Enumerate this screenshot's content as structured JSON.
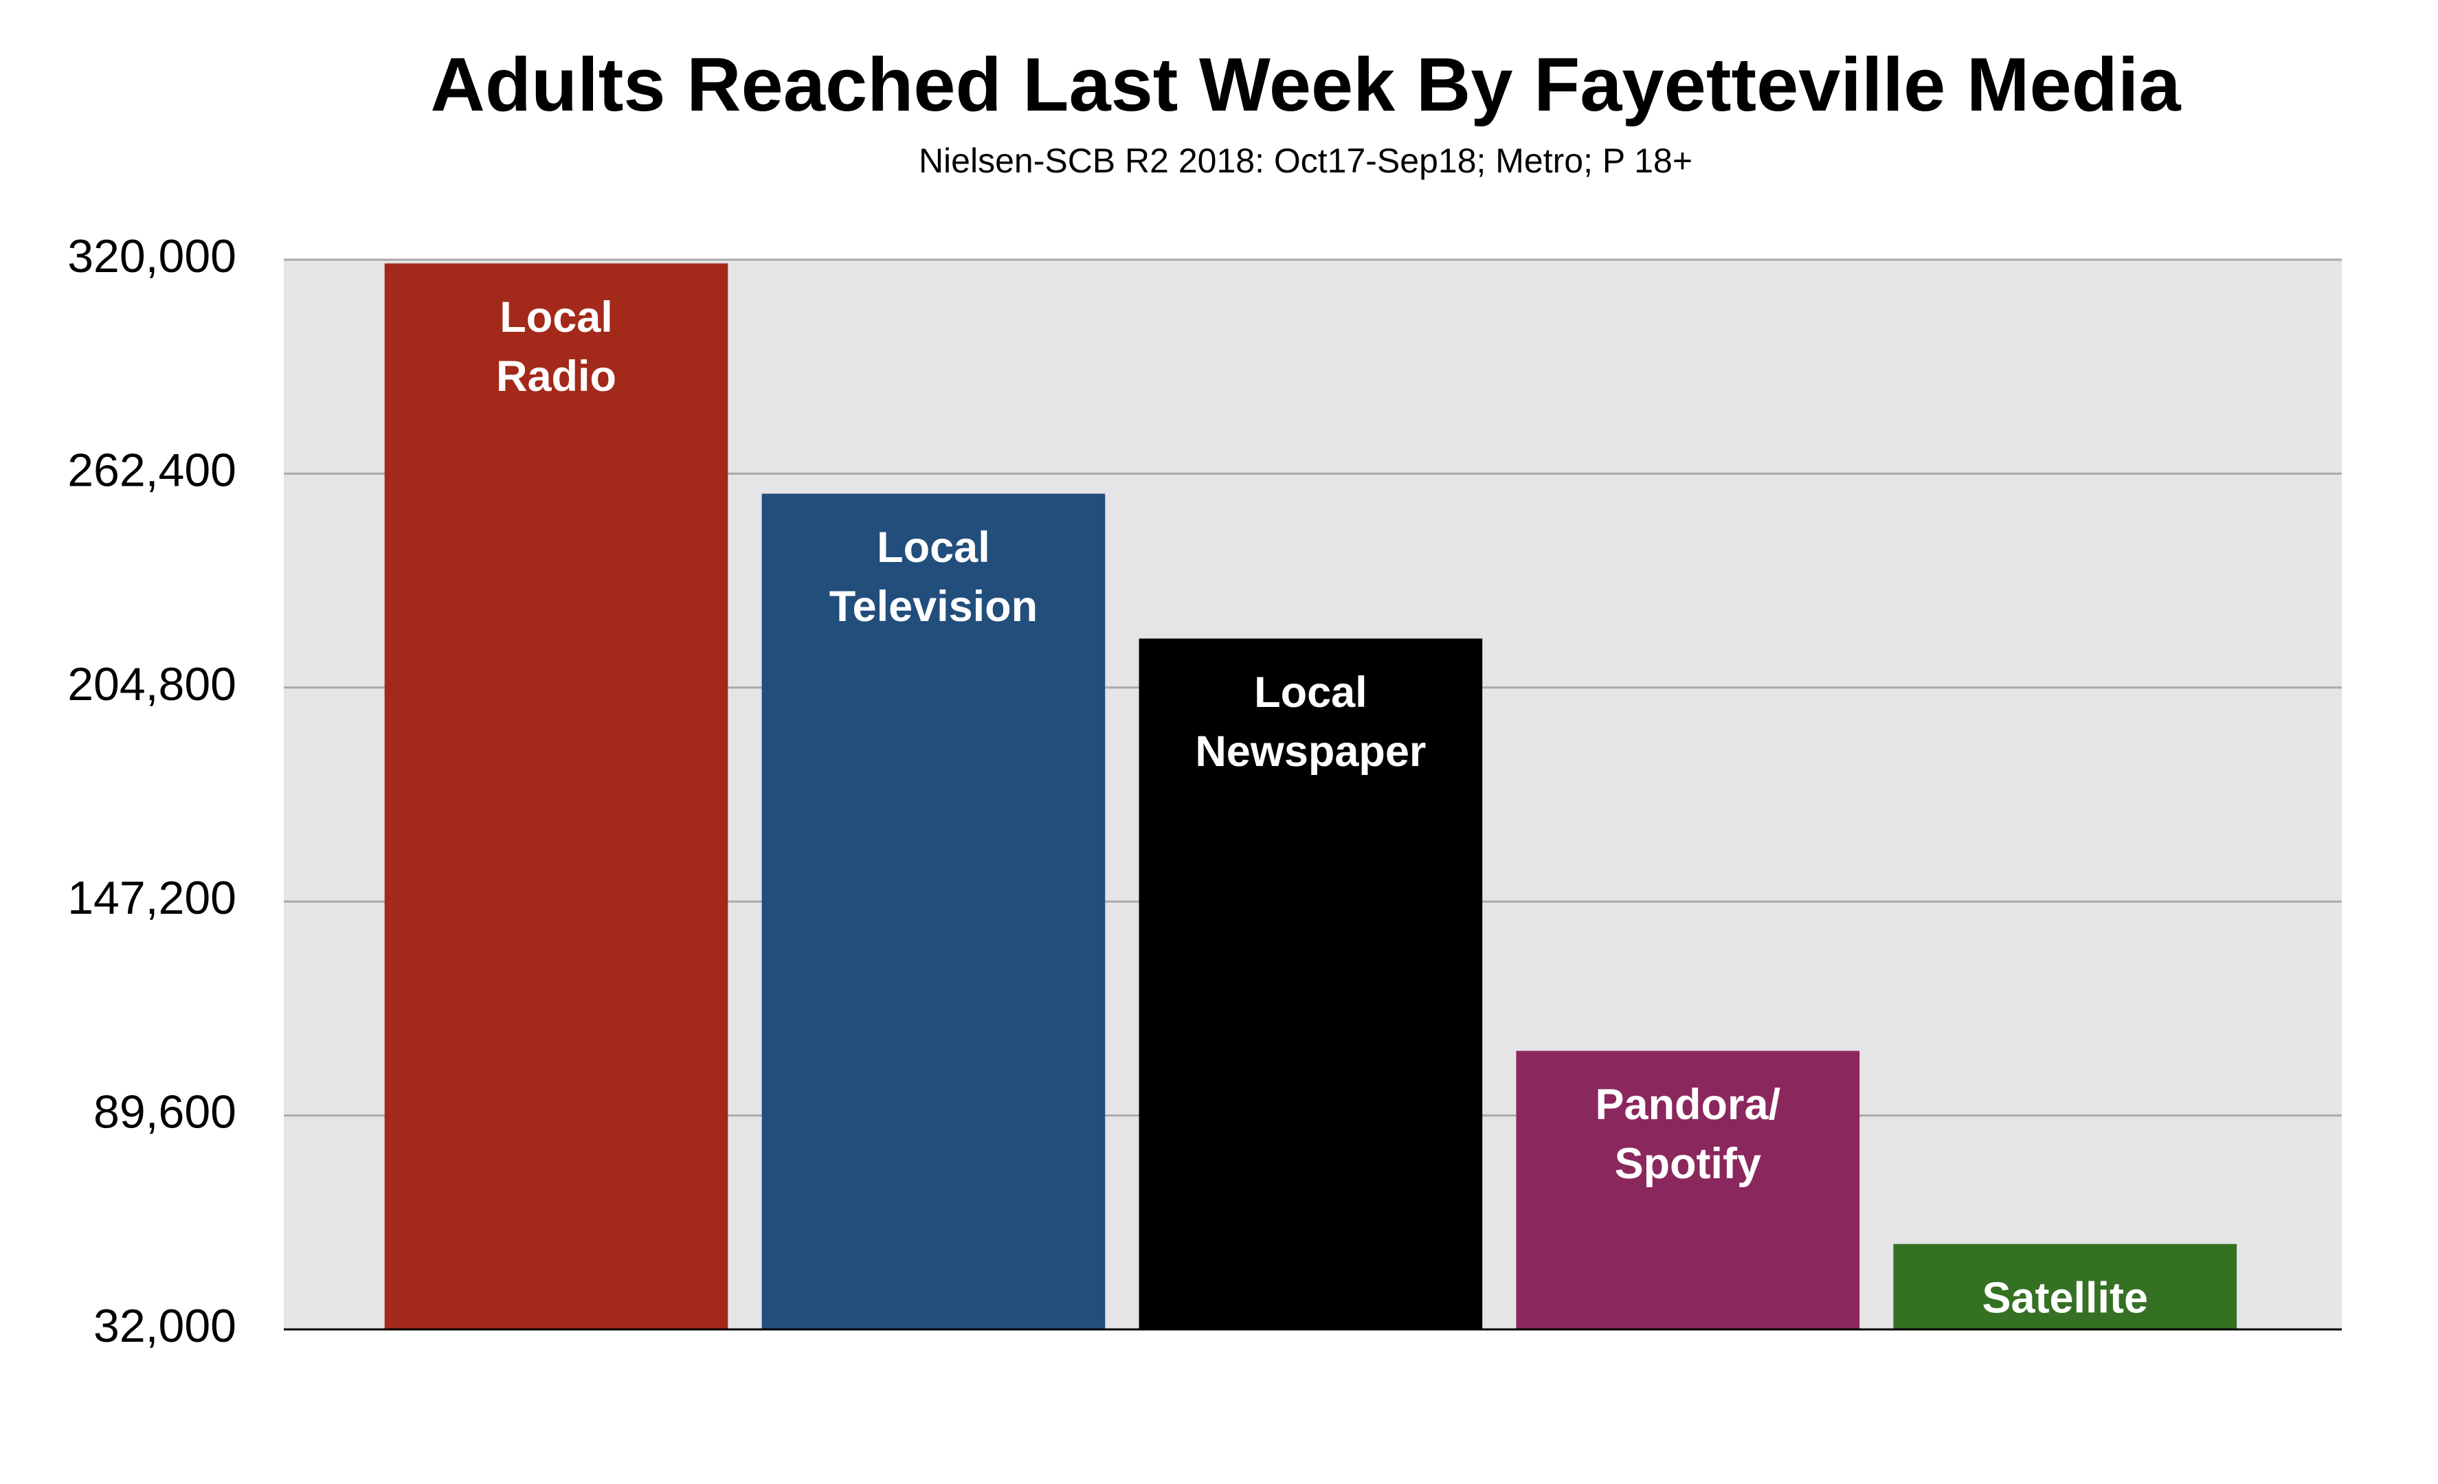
{
  "chart_data": {
    "type": "bar",
    "title": "Adults Reached Last Week By Fayetteville Media",
    "subtitle": "Nielsen-SCB R2 2018: Oct17-Sep18; Metro; P 18+",
    "categories": [
      [
        "Local",
        "Radio"
      ],
      [
        "Local",
        "Television"
      ],
      [
        "Local",
        "Newspaper"
      ],
      [
        "Pandora/",
        "Spotify"
      ],
      [
        "Satellite"
      ]
    ],
    "values": [
      319000,
      257000,
      218000,
      107000,
      55000
    ],
    "colors": [
      "#a32a1a",
      "#224e7c",
      "#000000",
      "#8a285e",
      "#357123"
    ],
    "ylim": [
      32000,
      320000
    ],
    "yticks": [
      {
        "value": 32000,
        "label": "32,000"
      },
      {
        "value": 89600,
        "label": "89,600"
      },
      {
        "value": 147200,
        "label": "147,200"
      },
      {
        "value": 204800,
        "label": "204,800"
      },
      {
        "value": 262400,
        "label": "262,400"
      },
      {
        "value": 320000,
        "label": "320,000"
      }
    ],
    "grid": true
  }
}
